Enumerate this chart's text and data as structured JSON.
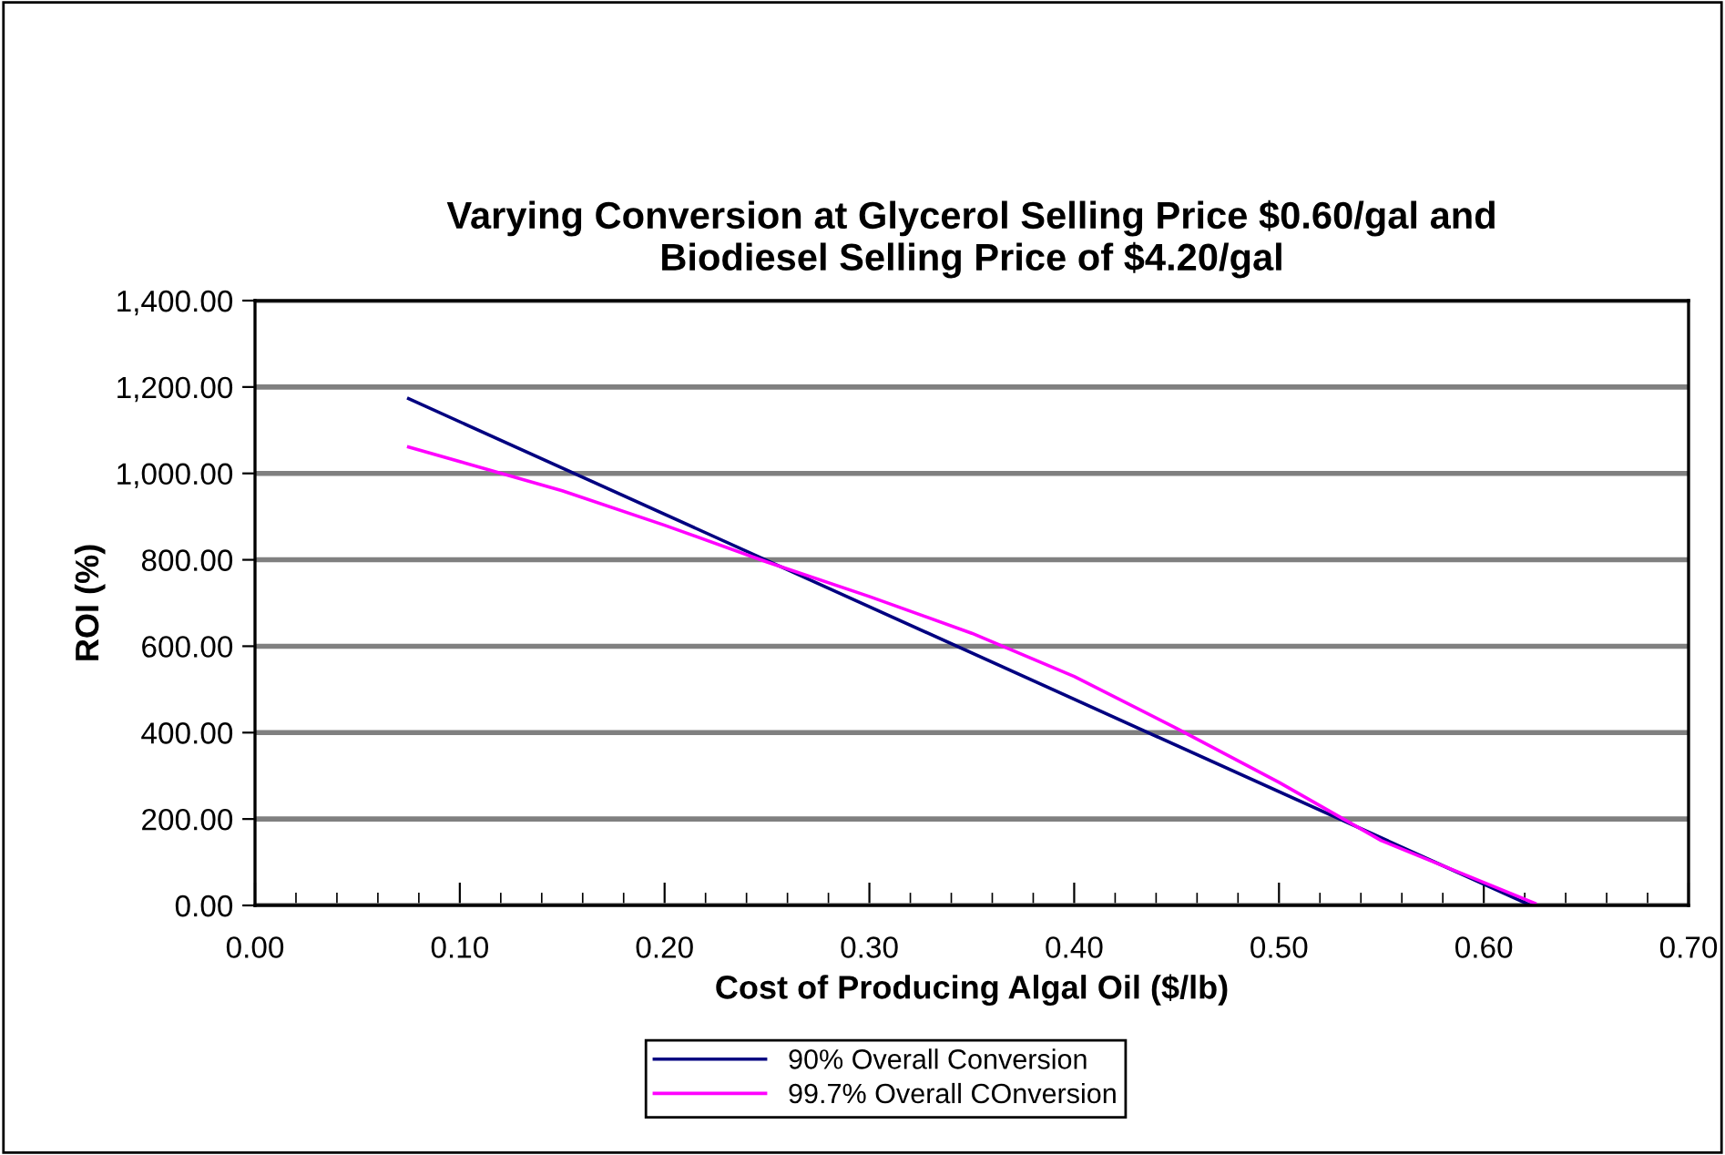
{
  "chart_data": {
    "type": "line",
    "title": "Varying Conversion at Glycerol Selling Price $0.60/gal and\nBiodiesel Selling Price of $4.20/gal",
    "xlabel": "Cost of Producing Algal Oil ($/lb)",
    "ylabel": "ROI (%)",
    "series": [
      {
        "name": "90% Overall Conversion",
        "color": "#000080",
        "x": [
          0.075,
          0.623
        ],
        "values": [
          1173,
          0
        ]
      },
      {
        "name": "99.7% Overall COnversion",
        "color": "#ff00ff",
        "x": [
          0.075,
          0.15,
          0.2,
          0.25,
          0.3,
          0.35,
          0.4,
          0.45,
          0.5,
          0.55,
          0.625
        ],
        "values": [
          1061,
          960,
          880,
          795,
          715,
          630,
          530,
          410,
          285,
          150,
          5
        ]
      }
    ],
    "xlim": [
      0,
      0.7
    ],
    "xticks": [
      {
        "value": 0,
        "label": "0.00"
      },
      {
        "value": 0.1,
        "label": "0.10"
      },
      {
        "value": 0.2,
        "label": "0.20"
      },
      {
        "value": 0.3,
        "label": "0.30"
      },
      {
        "value": 0.4,
        "label": "0.40"
      },
      {
        "value": 0.5,
        "label": "0.50"
      },
      {
        "value": 0.6,
        "label": "0.60"
      },
      {
        "value": 0.7,
        "label": "0.70"
      }
    ],
    "ylim": [
      0,
      1400
    ],
    "yticks": [
      {
        "value": 0,
        "label": "0.00"
      },
      {
        "value": 200,
        "label": "200.00"
      },
      {
        "value": 400,
        "label": "400.00"
      },
      {
        "value": 600,
        "label": "600.00"
      },
      {
        "value": 800,
        "label": "800.00"
      },
      {
        "value": 1000,
        "label": "1,000.00"
      },
      {
        "value": 1200,
        "label": "1,200.00"
      },
      {
        "value": 1400,
        "label": "1,400.00"
      }
    ],
    "grid": "y",
    "legend": "bottom",
    "marker": "none",
    "line_style": "solid"
  }
}
